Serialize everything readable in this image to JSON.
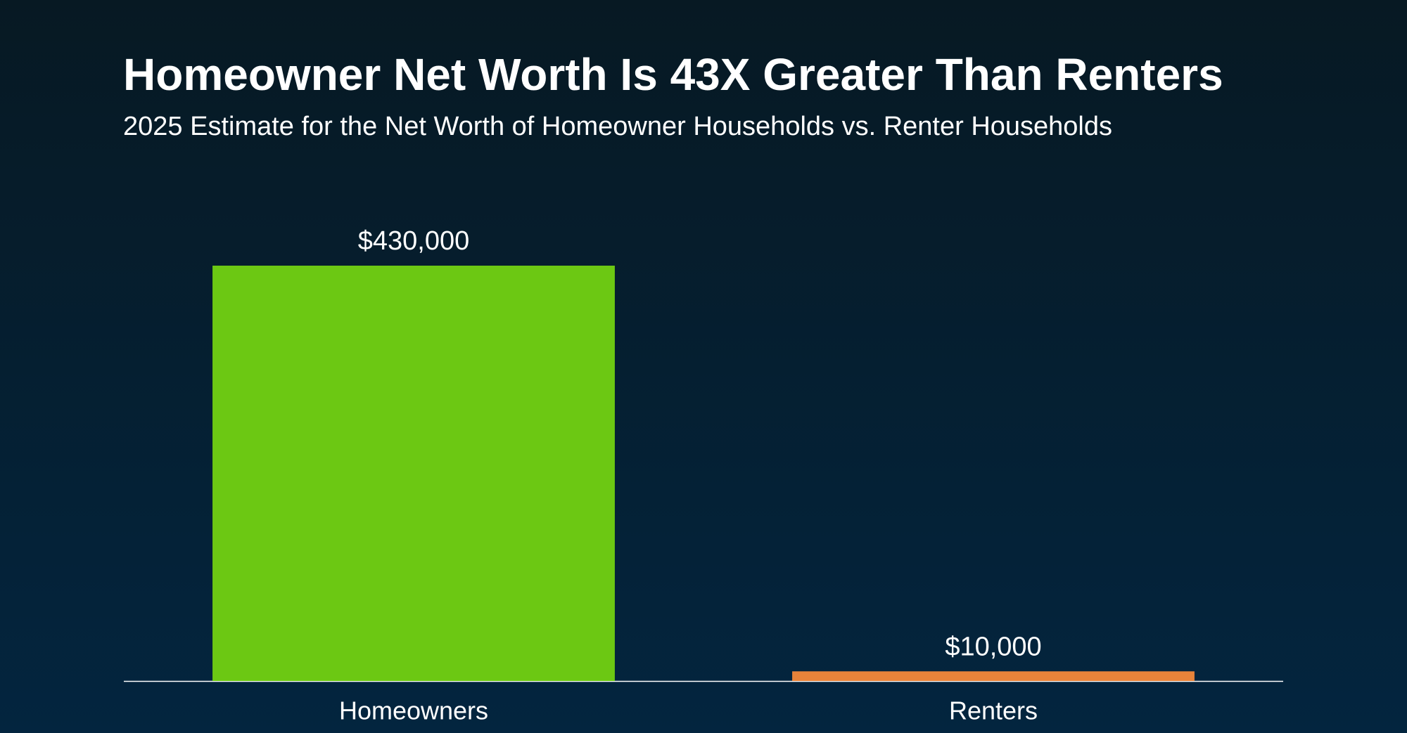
{
  "chart_data": {
    "type": "bar",
    "title": "Homeowner Net Worth Is 43X Greater Than Renters",
    "subtitle": "2025 Estimate for the Net Worth of Homeowner Households vs. Renter Households",
    "categories": [
      "Homeowners",
      "Renters"
    ],
    "values": [
      430000,
      10000
    ],
    "value_labels": [
      "$430,000",
      "$10,000"
    ],
    "colors": [
      "#6cc813",
      "#e8833a"
    ],
    "ylim": [
      0,
      430000
    ]
  }
}
